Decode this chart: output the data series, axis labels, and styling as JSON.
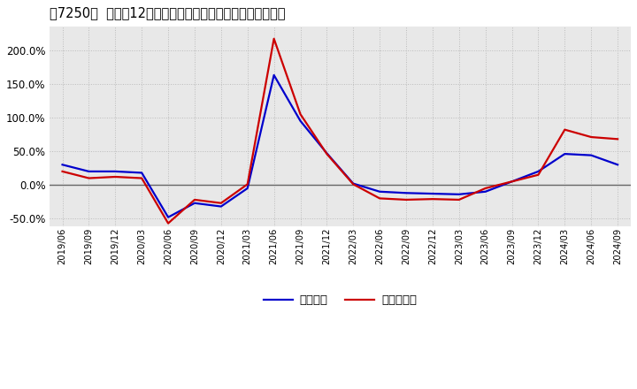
{
  "title": "［7250］  利益の12か月移動合計の対前年同期増減率の推移",
  "x_labels": [
    "2019/06",
    "2019/09",
    "2019/12",
    "2020/03",
    "2020/06",
    "2020/09",
    "2020/12",
    "2021/03",
    "2021/06",
    "2021/09",
    "2021/12",
    "2022/03",
    "2022/06",
    "2022/09",
    "2022/12",
    "2023/03",
    "2023/06",
    "2023/09",
    "2023/12",
    "2024/03",
    "2024/06",
    "2024/09"
  ],
  "keijo_rieki": [
    0.3,
    0.2,
    0.2,
    0.18,
    -0.48,
    -0.27,
    -0.32,
    -0.05,
    1.63,
    0.95,
    0.47,
    0.02,
    -0.1,
    -0.12,
    -0.13,
    -0.14,
    -0.1,
    0.05,
    0.2,
    0.46,
    0.44,
    0.3
  ],
  "toki_jun_rieki": [
    0.2,
    0.1,
    0.12,
    0.1,
    -0.57,
    -0.22,
    -0.27,
    0.01,
    2.17,
    1.05,
    0.46,
    0.01,
    -0.2,
    -0.22,
    -0.21,
    -0.22,
    -0.05,
    0.05,
    0.15,
    0.82,
    0.71,
    0.68
  ],
  "keijo_color": "#0000cc",
  "toki_color": "#cc0000",
  "background_color": "#ffffff",
  "plot_bg_color": "#e8e8e8",
  "grid_color": "#bbbbbb",
  "ylim": [
    -0.62,
    2.35
  ],
  "yticks": [
    -0.5,
    0.0,
    0.5,
    1.0,
    1.5,
    2.0
  ],
  "legend_label_keijo": "経常利益",
  "legend_label_toki": "当期純利益",
  "zero_line_color": "#666666",
  "line_width": 1.6
}
